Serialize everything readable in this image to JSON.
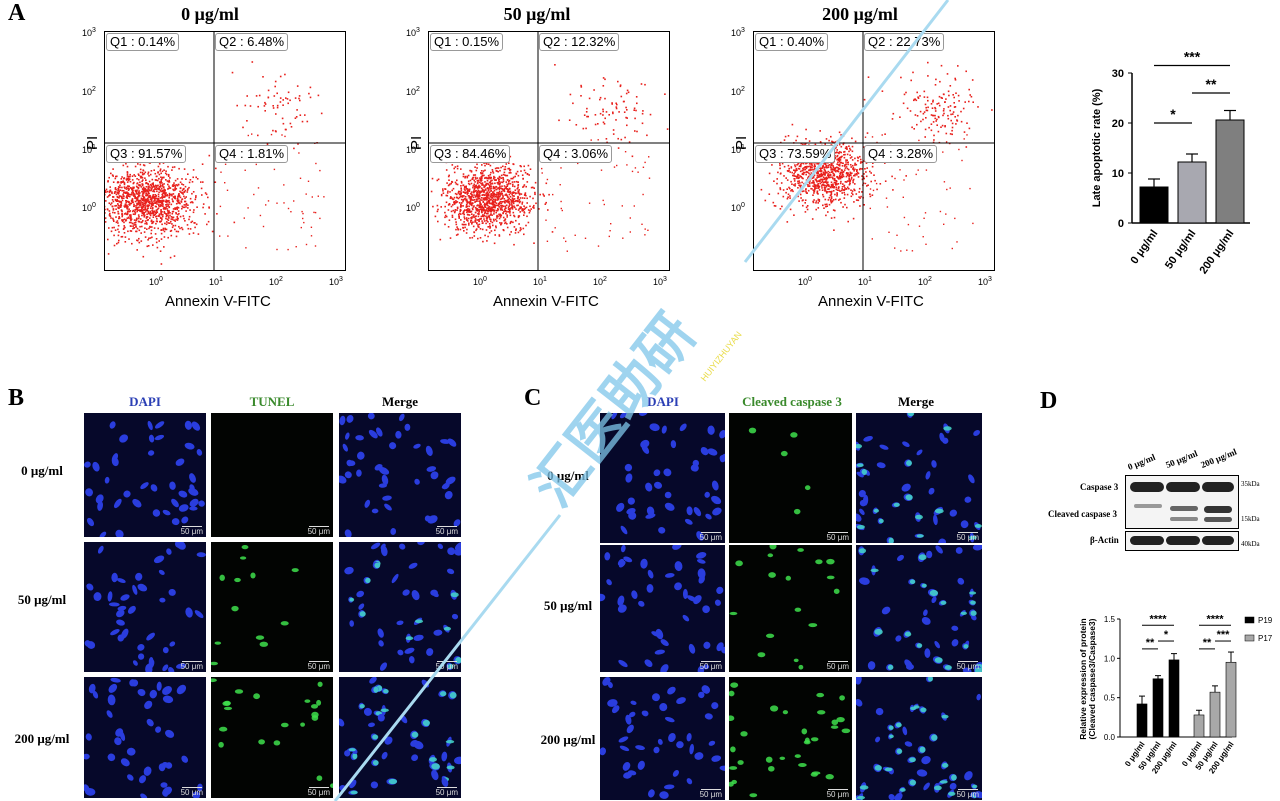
{
  "panels": {
    "A": "A",
    "B": "B",
    "C": "C",
    "D": "D"
  },
  "flow": {
    "xlabel": "Annexin V-FITC",
    "ylabel": "PI",
    "ticks": [
      "10",
      "0",
      "1",
      "2",
      "3"
    ],
    "plots": [
      {
        "title": "0 μg/ml",
        "q1": "Q1 : 0.14%",
        "q2": "Q2 : 6.48%",
        "q3": "Q3 : 91.57%",
        "q4": "Q4 : 1.81%"
      },
      {
        "title": "50 μg/ml",
        "q1": "Q1 : 0.15%",
        "q2": "Q2 : 12.32%",
        "q3": "Q3 : 84.46%",
        "q4": "Q4 : 3.06%"
      },
      {
        "title": "200 μg/ml",
        "q1": "Q1 : 0.40%",
        "q2": "Q2 : 22.73%",
        "q3": "Q3 : 73.59%",
        "q4": "Q4 : 3.28%"
      }
    ]
  },
  "chart_data": [
    {
      "type": "bar",
      "title": "",
      "ylabel": "Late apoptotic rate (%)",
      "xlabel": "",
      "categories": [
        "0 μg/ml",
        "50 μg/ml",
        "200 μg/ml"
      ],
      "values": [
        7.2,
        12.2,
        20.6
      ],
      "errors": [
        1.6,
        1.6,
        1.9
      ],
      "colors": [
        "#000000",
        "#a8a8b0",
        "#7f7f7f"
      ],
      "ylim": [
        0,
        30
      ],
      "yticks": [
        "0",
        "10",
        "20",
        "30"
      ],
      "significance": [
        {
          "from": 0,
          "to": 1,
          "label": "*"
        },
        {
          "from": 1,
          "to": 2,
          "label": "**"
        },
        {
          "from": 0,
          "to": 2,
          "label": "***"
        }
      ]
    },
    {
      "type": "bar",
      "title": "",
      "ylabel": "Relative expression of protein",
      "ylabel2": "(Cleaved caspase3/Caspase3)",
      "categories": [
        "0 μg/ml",
        "50 μg/ml",
        "200 μg/ml"
      ],
      "series": [
        {
          "name": "P19",
          "color": "#000000",
          "values": [
            0.42,
            0.74,
            0.98
          ],
          "errors": [
            0.1,
            0.04,
            0.08
          ]
        },
        {
          "name": "P17",
          "color": "#a8a8a8",
          "values": [
            0.28,
            0.57,
            0.95
          ],
          "errors": [
            0.06,
            0.08,
            0.13
          ]
        }
      ],
      "ylim": [
        0,
        1.5
      ],
      "yticks": [
        "0.0",
        "0.5",
        "1.0",
        "1.5"
      ],
      "significance": [
        {
          "series": 0,
          "from": 0,
          "to": 1,
          "label": "**"
        },
        {
          "series": 0,
          "from": 1,
          "to": 2,
          "label": "*"
        },
        {
          "series": 0,
          "from": 0,
          "to": 2,
          "label": "****"
        },
        {
          "series": 1,
          "from": 0,
          "to": 1,
          "label": "**"
        },
        {
          "series": 1,
          "from": 1,
          "to": 2,
          "label": "***"
        },
        {
          "series": 1,
          "from": 0,
          "to": 2,
          "label": "****"
        }
      ]
    }
  ],
  "fluor": {
    "B_cols": [
      "DAPI",
      "TUNEL",
      "Merge"
    ],
    "C_cols": [
      "DAPI",
      "Cleaved caspase 3",
      "Merge"
    ],
    "rows": [
      "0 μg/ml",
      "50 μg/ml",
      "200 μg/ml"
    ],
    "scale": "50 μm"
  },
  "blot": {
    "lanes": [
      "0 μg/ml",
      "50 μg/ml",
      "200 μg/ml"
    ],
    "rows": [
      "Caspase 3",
      "Cleaved caspase 3",
      "β-Actin"
    ],
    "kda": [
      "35kDa",
      "15kDa",
      "40kDa"
    ]
  },
  "watermark": {
    "text": "汇医助研",
    "sub": "HUIYIZHUYAN"
  }
}
